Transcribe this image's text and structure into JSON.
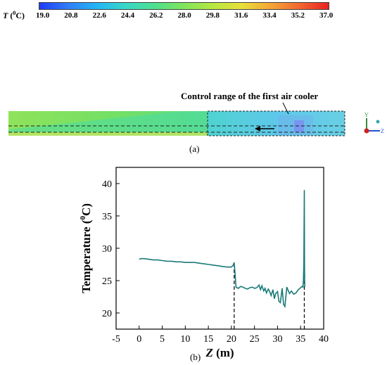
{
  "panel_a": {
    "colorbar": {
      "var": "T",
      "unit": "(",
      "unit_sup": "0",
      "unit_tail": "C)",
      "ticks": [
        "19.0",
        "20.8",
        "22.6",
        "24.4",
        "26.2",
        "28.0",
        "29.8",
        "31.6",
        "33.4",
        "35.2",
        "37.0"
      ],
      "colors": [
        "#1f3cf5",
        "#2f7ef7",
        "#22b7f4",
        "#3ad7c5",
        "#4ee08e",
        "#7fe55a",
        "#b7e842",
        "#e8df3a",
        "#f4a636",
        "#f26730",
        "#e8231f"
      ]
    },
    "annotation": "Control range of the first air cooler",
    "axis_labels": {
      "y": "Y",
      "z": "Z"
    },
    "caption": "(a)"
  },
  "chart_data": {
    "type": "line",
    "title": "",
    "xlabel": "Z (m)",
    "xlabel_var": "Z",
    "xlabel_unit": "(m)",
    "ylabel": "Temperature (0C)",
    "ylabel_text": "Temperature (",
    "ylabel_sup": "0",
    "ylabel_tail": "C)",
    "xlim": [
      -5,
      40
    ],
    "ylim": [
      17.5,
      42.5
    ],
    "xticks": [
      -5,
      0,
      5,
      10,
      15,
      20,
      25,
      30,
      35,
      40
    ],
    "yticks": [
      20,
      25,
      30,
      35,
      40
    ],
    "grid": false,
    "color": "#1a7a78",
    "vlines": [
      20.6,
      35.8
    ],
    "series": [
      {
        "x": [
          0,
          0.5,
          1,
          2,
          3,
          4,
          5,
          6,
          7,
          8,
          9,
          10,
          11,
          12,
          13,
          14,
          15,
          16,
          17,
          18,
          19,
          20,
          20.4,
          20.6,
          20.8,
          21.0,
          21.5,
          22,
          22.5,
          23,
          23.5,
          24,
          24.5,
          25,
          25.5,
          26,
          26.3,
          26.6,
          27,
          27.3,
          27.6,
          28,
          28.3,
          28.6,
          29,
          29.3,
          29.6,
          30,
          30.3,
          30.6,
          31,
          31.3,
          31.6,
          32,
          32.3,
          32.6,
          33,
          33.5,
          34,
          34.5,
          35,
          35.3,
          35.5,
          35.6,
          35.7,
          35.8,
          35.85,
          35.9
        ],
        "y": [
          28.3,
          28.4,
          28.4,
          28.3,
          28.2,
          28.2,
          28.1,
          28.0,
          28.0,
          27.9,
          27.9,
          27.8,
          27.8,
          27.8,
          27.7,
          27.6,
          27.5,
          27.4,
          27.3,
          27.2,
          27.1,
          27.1,
          27.4,
          27.8,
          26.0,
          24.0,
          23.8,
          24.1,
          24.0,
          23.8,
          23.7,
          23.9,
          24.0,
          23.8,
          23.9,
          24.3,
          23.6,
          24.2,
          23.4,
          23.8,
          23.1,
          23.7,
          23.3,
          22.7,
          23.6,
          22.2,
          23.0,
          23.3,
          21.8,
          21.6,
          23.8,
          21.3,
          21.0,
          24.0,
          23.5,
          23.0,
          23.4,
          22.9,
          23.1,
          23.6,
          23.9,
          24.1,
          24.0,
          25.0,
          27.5,
          39.0,
          27.0,
          24.0
        ]
      }
    ],
    "caption": "(b)"
  }
}
